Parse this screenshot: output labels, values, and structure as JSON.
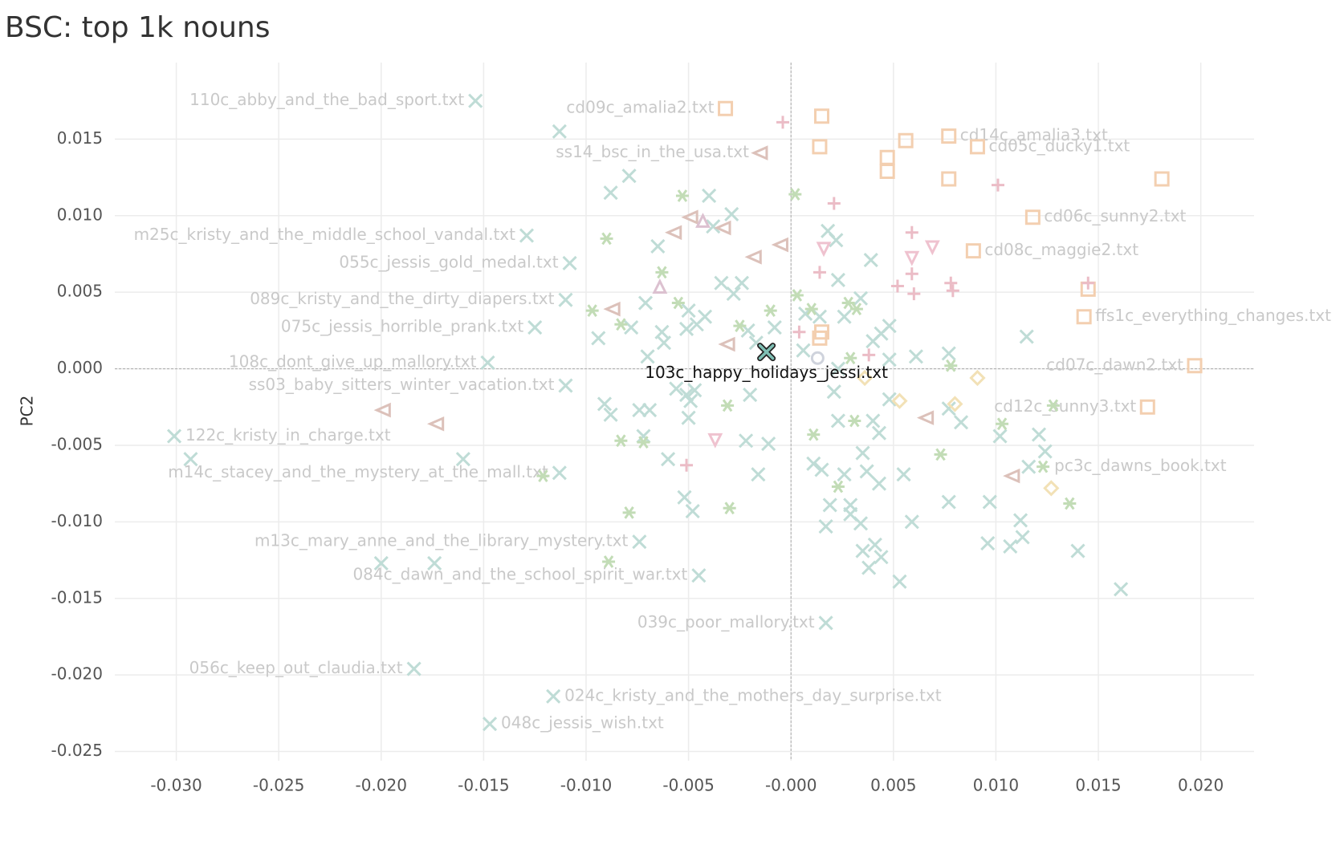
{
  "chart_data": {
    "type": "scatter",
    "title": "BSC: top 1k nouns",
    "y_label": "PC2",
    "xlim": [
      -0.033,
      0.0226
    ],
    "ylim": [
      -0.0256,
      0.02
    ],
    "grid": true,
    "zero_lines": true,
    "xticks": [
      {
        "value": -0.03,
        "label": "-0.030"
      },
      {
        "value": -0.025,
        "label": "-0.025"
      },
      {
        "value": -0.02,
        "label": "-0.020"
      },
      {
        "value": -0.015,
        "label": "-0.015"
      },
      {
        "value": -0.01,
        "label": "-0.010"
      },
      {
        "value": -0.005,
        "label": "-0.005"
      },
      {
        "value": 0,
        "label": "-0.000"
      },
      {
        "value": 0.005,
        "label": "0.005"
      },
      {
        "value": 0.01,
        "label": "0.010"
      },
      {
        "value": 0.015,
        "label": "0.015"
      },
      {
        "value": 0.02,
        "label": "0.020"
      }
    ],
    "yticks": [
      {
        "value": 0.015,
        "label": "0.015"
      },
      {
        "value": 0.01,
        "label": "0.010"
      },
      {
        "value": 0.005,
        "label": "0.005"
      },
      {
        "value": 0,
        "label": "0.000"
      },
      {
        "value": -0.005,
        "label": "-0.005"
      },
      {
        "value": -0.01,
        "label": "-0.010"
      },
      {
        "value": -0.015,
        "label": "-0.015"
      },
      {
        "value": -0.02,
        "label": "-0.020"
      },
      {
        "value": -0.025,
        "label": "-0.025"
      }
    ],
    "series": [
      {
        "shape": "x",
        "color": "#bfdcd6",
        "x": [
          -0.0154,
          -0.0148,
          -0.0301,
          -0.0129,
          -0.0108,
          -0.011,
          -0.0125,
          -0.011,
          -0.0113,
          -0.0074,
          -0.0045,
          -0.0184,
          -0.0116,
          -0.0147,
          0.0017,
          -0.0293,
          -0.02,
          -0.0113,
          -0.0079,
          -0.0088,
          -0.004,
          -0.0029,
          -0.0038,
          -0.0065,
          0.0018,
          0.0022,
          0.0039,
          0.0023,
          -0.0034,
          -0.0024,
          -0.0028,
          -0.0071,
          -0.0042,
          -0.005,
          -0.0078,
          -0.0094,
          -0.0063,
          -0.0062,
          -0.0051,
          -0.0046,
          -0.0021,
          -0.0017,
          -0.0008,
          0.0007,
          0.0014,
          0.0034,
          0.0026,
          0.004,
          0.0048,
          0.0044,
          0.0061,
          0.0077,
          0.0115,
          0.0048,
          0.0006,
          0.0023,
          0.0021,
          -0.007,
          -0.0056,
          -0.0051,
          -0.0047,
          -0.0049,
          -0.0091,
          -0.0088,
          -0.0074,
          -0.0069,
          -0.005,
          -0.002,
          -0.0072,
          -0.006,
          -0.0022,
          -0.0011,
          -0.0016,
          0.0011,
          0.0015,
          0.0026,
          0.0035,
          0.0037,
          0.0043,
          0.0055,
          0.0043,
          0.004,
          0.0023,
          0.0048,
          0.0083,
          0.0077,
          0.0102,
          0.0121,
          0.0124,
          0.0116,
          0.0077,
          0.0097,
          0.0019,
          0.0029,
          0.0029,
          0.0017,
          0.0034,
          0.0059,
          0.0112,
          0.0113,
          0.0096,
          0.0107,
          0.0041,
          0.0035,
          0.0044,
          0.0038,
          0.0053,
          0.014,
          0.0161,
          -0.0174,
          -0.016,
          -0.0052,
          -0.0048
        ],
        "y": [
          0.0175,
          0.0004,
          -0.0044,
          0.0087,
          0.0069,
          0.0045,
          0.0027,
          -0.0011,
          -0.0068,
          -0.0113,
          -0.0135,
          -0.0196,
          -0.0214,
          -0.0232,
          -0.0166,
          -0.0059,
          -0.0127,
          0.0155,
          0.0126,
          0.0115,
          0.0113,
          0.0101,
          0.0093,
          0.008,
          0.009,
          0.0084,
          0.0071,
          0.0058,
          0.0056,
          0.0056,
          0.0049,
          0.0043,
          0.0034,
          0.0038,
          0.0027,
          0.002,
          0.0024,
          0.0017,
          0.0026,
          0.0029,
          0.0025,
          0.0017,
          0.0027,
          0.0036,
          0.0034,
          0.0046,
          0.0034,
          0.0018,
          0.0028,
          0.0023,
          0.0008,
          0.001,
          0.0021,
          0.0006,
          0.0012,
          0.0,
          -0.0015,
          0.0008,
          -0.0013,
          -0.0017,
          -0.0014,
          -0.0021,
          -0.0023,
          -0.003,
          -0.0027,
          -0.0027,
          -0.0032,
          -0.0017,
          -0.0044,
          -0.0059,
          -0.0047,
          -0.0049,
          -0.0069,
          -0.0062,
          -0.0066,
          -0.0069,
          -0.0055,
          -0.0067,
          -0.0075,
          -0.0069,
          -0.0042,
          -0.0034,
          -0.0034,
          -0.002,
          -0.0035,
          -0.0026,
          -0.0044,
          -0.0043,
          -0.0054,
          -0.0064,
          -0.0087,
          -0.0087,
          -0.0089,
          -0.0089,
          -0.0095,
          -0.0103,
          -0.0101,
          -0.01,
          -0.0099,
          -0.011,
          -0.0114,
          -0.0116,
          -0.0115,
          -0.0119,
          -0.0123,
          -0.013,
          -0.0139,
          -0.0119,
          -0.0144,
          -0.0127,
          -0.0059,
          -0.0084,
          -0.0093
        ],
        "labels": [
          "110c_abby_and_the_bad_sport.txt",
          "108c_dont_give_up_mallory.txt",
          "122c_kristy_in_charge.txt",
          "m25c_kristy_and_the_middle_school_vandal.txt",
          "055c_jessis_gold_medal.txt",
          "089c_kristy_and_the_dirty_diapers.txt",
          "075c_jessis_horrible_prank.txt",
          "ss03_baby_sitters_winter_vacation.txt",
          "m14c_stacey_and_the_mystery_at_the_mall.txt",
          "m13c_mary_anne_and_the_library_mystery.txt",
          "084c_dawn_and_the_school_spirit_war.txt",
          "056c_keep_out_claudia.txt",
          "024c_kristy_and_the_mothers_day_surprise.txt",
          "048c_jessis_wish.txt",
          "039c_poor_mallory.txt",
          null,
          null,
          null,
          null,
          null,
          null,
          null,
          null,
          null,
          null,
          null,
          null,
          null,
          null,
          null,
          null,
          null,
          null,
          null,
          null,
          null,
          null,
          null,
          null,
          null,
          null,
          null,
          null,
          null,
          null,
          null,
          null,
          null,
          null,
          null,
          null,
          null,
          null,
          null,
          null,
          null,
          null,
          null,
          null,
          null,
          null,
          null,
          null,
          null,
          null,
          null,
          null,
          null,
          null,
          null,
          null,
          null,
          null,
          null,
          null,
          null,
          null,
          null,
          null,
          null,
          null,
          null,
          null,
          null,
          null,
          null,
          null,
          null,
          null,
          null,
          null,
          null,
          null,
          null,
          null,
          null,
          null,
          null,
          null,
          null,
          null,
          null,
          null,
          null,
          null,
          null,
          null,
          null,
          null,
          null,
          null,
          null,
          null
        ]
      },
      {
        "shape": "square",
        "color": "#f3cfb0",
        "x": [
          -0.0032,
          0.0077,
          0.0091,
          0.0118,
          0.0089,
          0.0197,
          0.0174,
          0.0015,
          0.0014,
          0.0056,
          0.0047,
          0.0047,
          0.0181,
          0.0077,
          0.0145,
          0.0015,
          0.0014
        ],
        "y": [
          0.017,
          0.0152,
          0.0145,
          0.0099,
          0.0077,
          0.0002,
          -0.0025,
          0.0165,
          0.0145,
          0.0149,
          0.0138,
          0.0129,
          0.0124,
          0.0124,
          0.0052,
          0.0024,
          0.002
        ],
        "labels": [
          "cd09c_amalia2.txt",
          "cd14c_amalia3.txt",
          "cd05c_ducky1.txt",
          "cd06c_sunny2.txt",
          "cd08c_maggie2.txt",
          "cd07c_dawn2.txt",
          "cd12c_sunny3.txt",
          null,
          null,
          null,
          null,
          null,
          null,
          null,
          null,
          null,
          null
        ]
      },
      {
        "shape": "plus",
        "color": "#ebbcc6",
        "x": [
          -0.0004,
          0.0021,
          0.0101,
          0.0059,
          0.0014,
          0.0059,
          0.0052,
          0.006,
          0.0078,
          0.0079,
          0.0145,
          0.0004,
          0.0038,
          -0.0051
        ],
        "y": [
          0.0161,
          0.0108,
          0.012,
          0.0089,
          0.0063,
          0.0062,
          0.0054,
          0.0049,
          0.0056,
          0.0051,
          0.0056,
          0.0024,
          0.0009,
          -0.0063
        ],
        "labels": [
          null,
          null,
          null,
          null,
          null,
          null,
          null,
          null,
          null,
          null,
          null,
          null,
          null,
          null
        ]
      },
      {
        "shape": "triangle-left",
        "color": "#dcc1ba",
        "x": [
          -0.0015,
          -0.0049,
          -0.0057,
          -0.0033,
          -0.0005,
          -0.0018,
          -0.0087,
          -0.0031,
          -0.0199,
          -0.0173,
          0.0066,
          0.0108
        ],
        "y": [
          0.0141,
          0.0099,
          0.0089,
          0.0092,
          0.0081,
          0.0073,
          0.0039,
          0.0016,
          -0.0027,
          -0.0036,
          -0.0032,
          -0.007
        ],
        "labels": [
          "ss14_bsc_in_the_usa.txt",
          null,
          null,
          null,
          null,
          null,
          null,
          null,
          null,
          null,
          null,
          null
        ]
      },
      {
        "shape": "triangle-up",
        "color": "#dcc1d0",
        "x": [
          -0.0064,
          -0.0043
        ],
        "y": [
          0.0053,
          0.0096
        ],
        "labels": [
          null,
          null
        ]
      },
      {
        "shape": "triangle-down",
        "color": "#efc2cf",
        "x": [
          0.0016,
          0.0059,
          0.0069,
          -0.0037
        ],
        "y": [
          0.0079,
          0.0073,
          0.008,
          -0.0046
        ],
        "labels": [
          null,
          null,
          null,
          null
        ]
      },
      {
        "shape": "diamond",
        "color": "#f2e1b6",
        "x": [
          0.0036,
          0.0053,
          0.008,
          0.0091,
          0.0127
        ],
        "y": [
          -0.0006,
          -0.0021,
          -0.0023,
          -0.0006,
          -0.0078
        ],
        "labels": [
          null,
          null,
          null,
          null,
          null
        ]
      },
      {
        "shape": "circle",
        "color": "#cfd3dc",
        "x": [
          0.0013
        ],
        "y": [
          0.0007
        ],
        "labels": [
          null
        ]
      },
      {
        "shape": "asterisk",
        "color": "#c2dcb6",
        "x": [
          0.0123,
          -0.0053,
          0.0002,
          -0.009,
          -0.0063,
          -0.0055,
          -0.0097,
          -0.0083,
          -0.001,
          0.0003,
          0.001,
          0.0028,
          0.0032,
          -0.0025,
          0.0029,
          0.0078,
          -0.0031,
          -0.0083,
          -0.0072,
          0.0031,
          0.0011,
          0.0023,
          0.0073,
          0.0103,
          0.0128,
          -0.0121,
          -0.0079,
          -0.003,
          -0.0089,
          0.0136
        ],
        "y": [
          -0.0064,
          0.0113,
          0.0114,
          0.0085,
          0.0063,
          0.0043,
          0.0038,
          0.0029,
          0.0038,
          0.0048,
          0.0039,
          0.0043,
          0.0039,
          0.0028,
          0.0007,
          0.0002,
          -0.0024,
          -0.0047,
          -0.0048,
          -0.0034,
          -0.0043,
          -0.0077,
          -0.0056,
          -0.0036,
          -0.0024,
          -0.007,
          -0.0094,
          -0.0091,
          -0.0126,
          -0.0088
        ],
        "labels": [
          "pc3c_dawns_book.txt",
          null,
          null,
          null,
          null,
          null,
          null,
          null,
          null,
          null,
          null,
          null,
          null,
          null,
          null,
          null,
          null,
          null,
          null,
          null,
          null,
          null,
          null,
          null,
          null,
          null,
          null,
          null,
          null,
          null
        ]
      },
      {
        "shape": "square",
        "color": "#f3cfb0",
        "x": [
          0.0143
        ],
        "y": [
          0.0034
        ],
        "labels": [
          "ffs1c_everything_changes.txt"
        ]
      }
    ],
    "highlight": {
      "shape": "x",
      "color": "#7fbfb4",
      "x": -0.0012,
      "y": 0.0011,
      "label": "103c_happy_holidays_jessi.txt"
    }
  }
}
